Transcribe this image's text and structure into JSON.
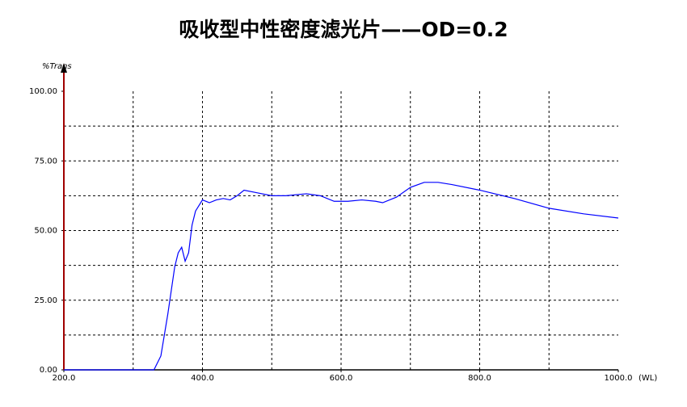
{
  "chart_data": {
    "type": "line",
    "title": "吸收型中性密度滤光片——OD=0.2",
    "y_label": "%Trans",
    "x_label": "(WL)",
    "xlim": [
      200,
      1000
    ],
    "ylim": [
      0,
      100
    ],
    "xticks": [
      {
        "value": 200,
        "label": "200.0"
      },
      {
        "value": 400,
        "label": "400.0"
      },
      {
        "value": 600,
        "label": "600.0"
      },
      {
        "value": 800,
        "label": "800.0"
      },
      {
        "value": 1000,
        "label": "1000.0"
      }
    ],
    "yticks": [
      {
        "value": 0,
        "label": "0.00"
      },
      {
        "value": 25,
        "label": "25.00"
      },
      {
        "value": 50,
        "label": "50.00"
      },
      {
        "value": 75,
        "label": "75.00"
      },
      {
        "value": 100,
        "label": "100.00"
      }
    ],
    "xgrid": [
      300,
      400,
      500,
      600,
      700,
      800,
      900
    ],
    "ygrid": [
      12.5,
      25,
      37.5,
      50,
      62.5,
      75,
      87.5
    ],
    "grid": true,
    "series": [
      {
        "color": "#0000ff",
        "x": [
          200,
          320,
          330,
          340,
          350,
          360,
          365,
          370,
          375,
          380,
          385,
          390,
          400,
          410,
          420,
          430,
          440,
          450,
          460,
          480,
          500,
          520,
          550,
          570,
          590,
          610,
          630,
          650,
          660,
          680,
          700,
          720,
          740,
          760,
          800,
          850,
          900,
          950,
          1000
        ],
        "values": [
          0,
          0,
          0,
          5,
          20,
          37,
          42,
          44,
          39,
          42,
          52,
          57,
          61,
          60,
          61,
          61.5,
          61,
          62.5,
          64.5,
          63.5,
          62.5,
          62.5,
          63.2,
          62.5,
          60.5,
          60.5,
          61,
          60.5,
          60,
          62,
          65.5,
          67.3,
          67.3,
          66.5,
          64.5,
          61.5,
          58,
          56,
          54.5
        ]
      }
    ]
  }
}
